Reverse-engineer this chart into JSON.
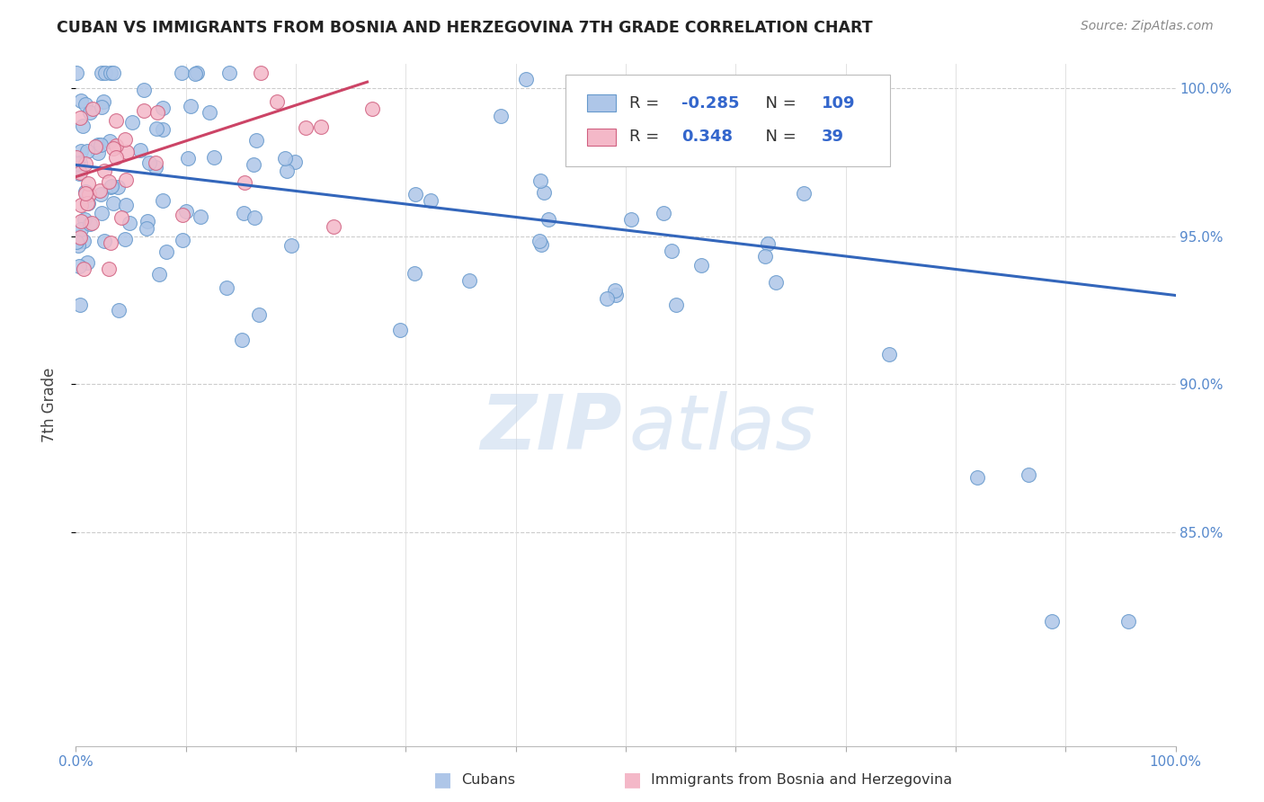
{
  "title": "CUBAN VS IMMIGRANTS FROM BOSNIA AND HERZEGOVINA 7TH GRADE CORRELATION CHART",
  "source": "Source: ZipAtlas.com",
  "ylabel": "7th Grade",
  "legend_R_blue": "-0.285",
  "legend_N_blue": "109",
  "legend_R_pink": "0.348",
  "legend_N_pink": "39",
  "blue_color": "#aec6e8",
  "pink_color": "#f4b8c8",
  "blue_edge_color": "#6699cc",
  "pink_edge_color": "#d06080",
  "blue_line_color": "#3366bb",
  "pink_line_color": "#cc4466",
  "xlim": [
    0.0,
    1.0
  ],
  "ylim": [
    0.778,
    1.008
  ],
  "yticks": [
    0.85,
    0.9,
    0.95,
    1.0
  ],
  "ytick_labels": [
    "85.0%",
    "90.0%",
    "95.0%",
    "100.0%"
  ],
  "blue_trend": [
    0.0,
    1.0,
    0.974,
    0.93
  ],
  "pink_trend": [
    0.0,
    0.265,
    0.97,
    1.002
  ]
}
